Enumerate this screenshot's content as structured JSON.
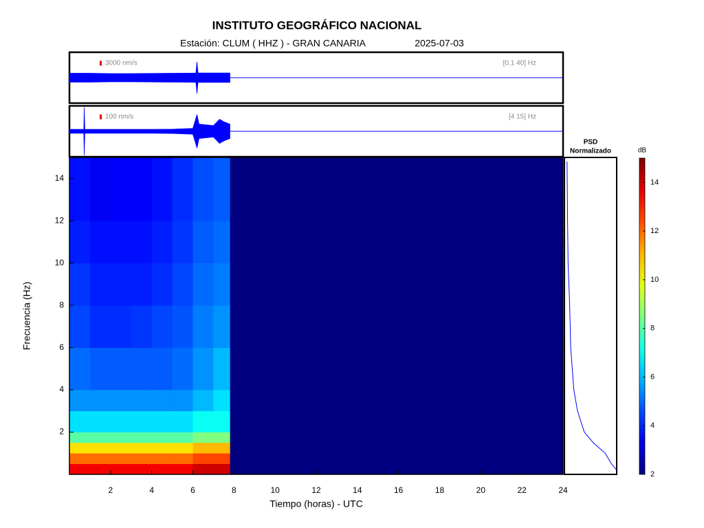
{
  "header": {
    "title": "INSTITUTO GEOGRÁFICO NACIONAL",
    "station": "Estación:  CLUM ( HHZ ) - GRAN CANARIA",
    "date": "2025-07-03"
  },
  "chart_data": [
    {
      "type": "waveform",
      "color": "#0000ff",
      "scale": {
        "value": 3000,
        "label": "3000 nm/s"
      },
      "band": "[0.1 40] Hz",
      "xlim": [
        0,
        24
      ],
      "ylim": [
        -16000,
        16000
      ],
      "x": [
        0,
        1,
        2,
        3,
        4,
        5,
        6,
        6.15,
        6.2,
        6.25,
        7,
        7.8
      ],
      "values": [
        2800,
        2800,
        2600,
        2600,
        2700,
        2800,
        2900,
        3000,
        10000,
        3000,
        3000,
        3000
      ]
    },
    {
      "type": "waveform",
      "color": "#0000ff",
      "scale": {
        "value": 100,
        "label": "100 nm/s"
      },
      "band": "[4 15] Hz",
      "xlim": [
        0,
        24
      ],
      "ylim": [
        -530,
        530
      ],
      "x": [
        0,
        0.7,
        0.72,
        0.75,
        1,
        2,
        3,
        4,
        5,
        6,
        6.1,
        6.2,
        6.3,
        7,
        7.3,
        7.5,
        7.8
      ],
      "values": [
        40,
        40,
        500,
        40,
        40,
        40,
        40,
        40,
        45,
        60,
        200,
        350,
        150,
        120,
        250,
        200,
        150
      ]
    },
    {
      "type": "heatmap",
      "xlabel": "Tiempo (horas) - UTC",
      "ylabel": "Frecuencia  (Hz)",
      "xlim": [
        0,
        24
      ],
      "ylim": [
        0,
        15
      ],
      "xticks": [
        2,
        4,
        6,
        8,
        10,
        12,
        14,
        16,
        18,
        20,
        22,
        24
      ],
      "yticks": [
        2,
        4,
        6,
        8,
        10,
        12,
        14
      ],
      "colormap": "jet",
      "clim": [
        2,
        15
      ],
      "colorbar": {
        "label": "dB",
        "ticks": [
          2,
          4,
          6,
          8,
          10,
          12,
          14
        ]
      },
      "x_edges": [
        0,
        1,
        2,
        3,
        4,
        5,
        6,
        7,
        7.8
      ],
      "y_edges": [
        0,
        0.5,
        1,
        1.5,
        2,
        3,
        4,
        6,
        8,
        10,
        12,
        15
      ],
      "values": [
        [
          13.5,
          13.5,
          13.5,
          13.5,
          13.5,
          13.5,
          14,
          14
        ],
        [
          12,
          12,
          12,
          12,
          12,
          12,
          12.5,
          12.5
        ],
        [
          10.5,
          10.5,
          10.5,
          10.5,
          10.5,
          10.5,
          11,
          11
        ],
        [
          8,
          8,
          8,
          8,
          8,
          8,
          8.5,
          8.5
        ],
        [
          6.5,
          6.5,
          6.5,
          6.5,
          6.5,
          6.5,
          7,
          7
        ],
        [
          5.5,
          5.5,
          5.5,
          5.5,
          5.5,
          5.5,
          6,
          6.5
        ],
        [
          5,
          4.8,
          4.8,
          4.8,
          4.8,
          5,
          5.5,
          6
        ],
        [
          4.5,
          4.2,
          4.2,
          4.3,
          4.5,
          4.7,
          5.2,
          5.5
        ],
        [
          4.3,
          4,
          4,
          4,
          4.2,
          4.5,
          5,
          5.2
        ],
        [
          4,
          3.8,
          3.8,
          3.8,
          4,
          4.3,
          4.8,
          5
        ],
        [
          3.8,
          3.5,
          3.6,
          3.6,
          3.8,
          4.2,
          4.6,
          4.8
        ]
      ]
    },
    {
      "type": "line",
      "title": [
        "PSD",
        "Normalizado"
      ],
      "color": "#0000ff",
      "xlim": [
        0,
        1
      ],
      "ylim": [
        0,
        15
      ],
      "x": [
        1,
        0.9,
        0.78,
        0.55,
        0.38,
        0.25,
        0.18,
        0.12,
        0.1,
        0.07,
        0.06,
        0.05
      ],
      "y": [
        0.2,
        0.5,
        1,
        1.5,
        2,
        3,
        4,
        6,
        8,
        10,
        12,
        14.8
      ]
    }
  ]
}
